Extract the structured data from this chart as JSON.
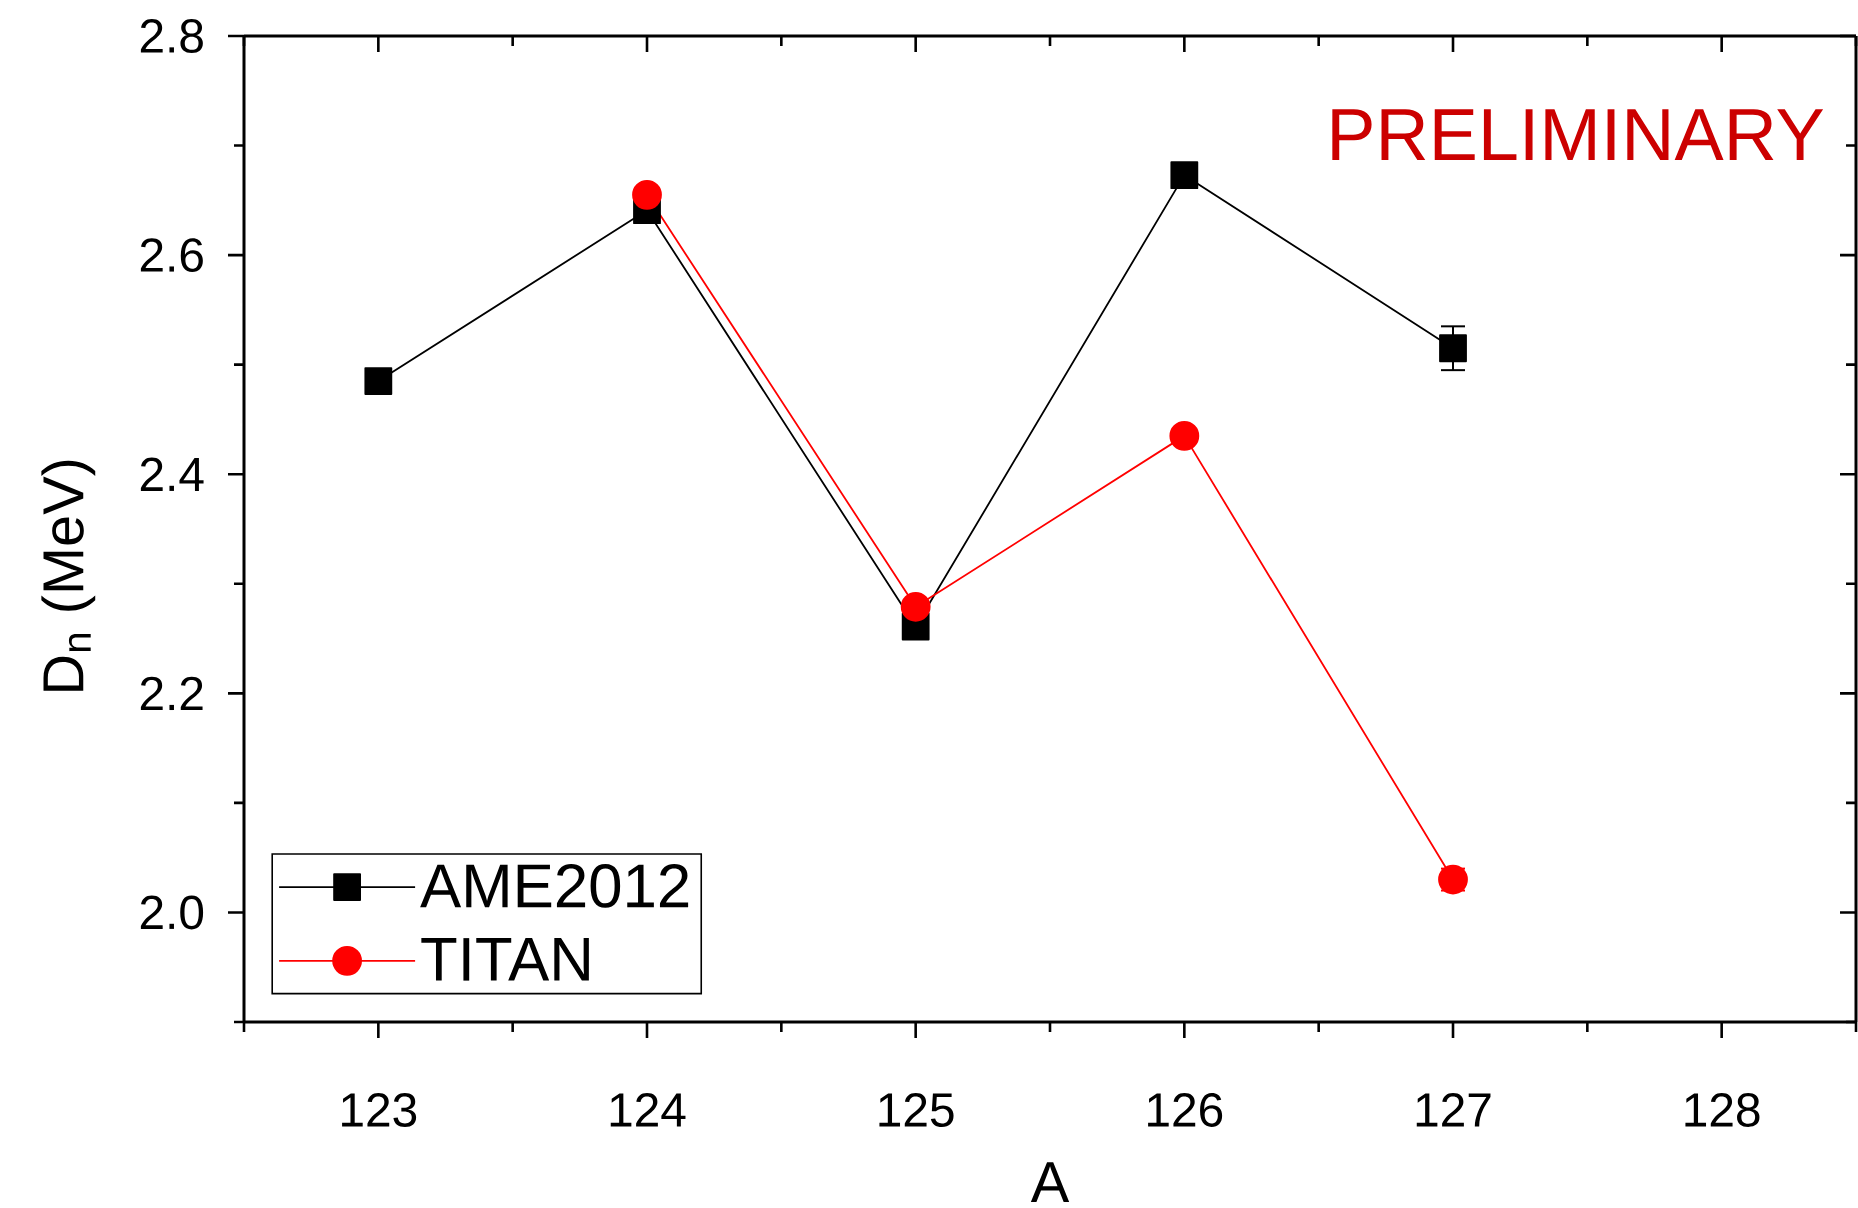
{
  "chart_data": {
    "type": "line",
    "xlabel": "A",
    "ylabel": "D$_{n}$ (MeV)",
    "annotations": [
      "PRELIMINARY"
    ],
    "x": [
      123,
      124,
      125,
      126,
      127
    ],
    "series": [
      {
        "name": "AME2012",
        "color": "#000000",
        "marker": "square",
        "values": [
          2.485,
          2.641,
          2.261,
          2.673,
          2.515
        ],
        "errors": [
          null,
          null,
          null,
          null,
          0.02
        ]
      },
      {
        "name": "TITAN",
        "color": "#ff0000",
        "marker": "circle",
        "x": [
          124,
          125,
          126,
          127
        ],
        "values": [
          2.655,
          2.279,
          2.435,
          2.03
        ],
        "errors": [
          null,
          null,
          null,
          0.01
        ]
      }
    ],
    "xlim": [
      122.5,
      128.5
    ],
    "xticks": [
      {
        "value": 122.5,
        "label": null
      },
      123,
      {
        "value": 123.5,
        "label": null
      },
      124,
      {
        "value": 124.5,
        "label": null
      },
      125,
      {
        "value": 125.5,
        "label": null
      },
      126,
      {
        "value": 126.5,
        "label": null
      },
      127,
      {
        "value": 127.5,
        "label": null
      },
      128,
      {
        "value": 128.5,
        "label": null
      }
    ],
    "ylim": [
      1.9,
      2.8
    ],
    "yticks": [
      {
        "value": 1.9,
        "label": null
      },
      {
        "value": 2.0,
        "label": "2.0"
      },
      {
        "value": 2.1,
        "label": null
      },
      2.2,
      {
        "value": 2.3,
        "label": null
      },
      2.4,
      {
        "value": 2.5,
        "label": null
      },
      2.6,
      {
        "value": 2.7,
        "label": null
      },
      2.8
    ],
    "legend": "bottom left",
    "grid": false
  }
}
